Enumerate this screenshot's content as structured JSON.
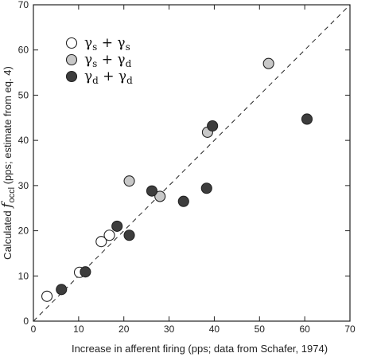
{
  "chart_data": {
    "type": "scatter",
    "xlabel": "Increase in afferent firing (pps; data from Schafer, 1974)",
    "ylabel_prefix": "Calculated ",
    "ylabel_symbol": "f",
    "ylabel_subscript": "occl",
    "ylabel_suffix": " (pps; estimate from eq. 4)",
    "xlim": [
      0,
      70
    ],
    "ylim": [
      0,
      70
    ],
    "xticks": [
      0,
      10,
      20,
      30,
      40,
      50,
      60,
      70
    ],
    "yticks": [
      0,
      10,
      20,
      30,
      40,
      50,
      60,
      70
    ],
    "grid": false,
    "identity_line": true,
    "legend_position": "top-left",
    "series": [
      {
        "name_a": "γ",
        "sub_a": "s",
        "op": "+",
        "name_b": "γ",
        "sub_b": "s",
        "fill": "#ffffff",
        "points": [
          [
            3,
            5.5
          ],
          [
            10.2,
            10.8
          ],
          [
            15,
            17.6
          ],
          [
            16.8,
            19
          ]
        ]
      },
      {
        "name_a": "γ",
        "sub_a": "s",
        "op": "+",
        "name_b": "γ",
        "sub_b": "d",
        "fill": "#c8c8c8",
        "points": [
          [
            21.2,
            31
          ],
          [
            28,
            27.6
          ],
          [
            38.5,
            41.8
          ],
          [
            52,
            57
          ]
        ]
      },
      {
        "name_a": "γ",
        "sub_a": "d",
        "op": "+",
        "name_b": "γ",
        "sub_b": "d",
        "fill": "#3d3d3d",
        "points": [
          [
            6.2,
            7
          ],
          [
            11.5,
            10.9
          ],
          [
            18.5,
            21
          ],
          [
            21.2,
            19
          ],
          [
            26.2,
            28.8
          ],
          [
            33.2,
            26.5
          ],
          [
            38.3,
            29.4
          ],
          [
            39.6,
            43.2
          ],
          [
            60.5,
            44.7
          ]
        ]
      }
    ]
  }
}
